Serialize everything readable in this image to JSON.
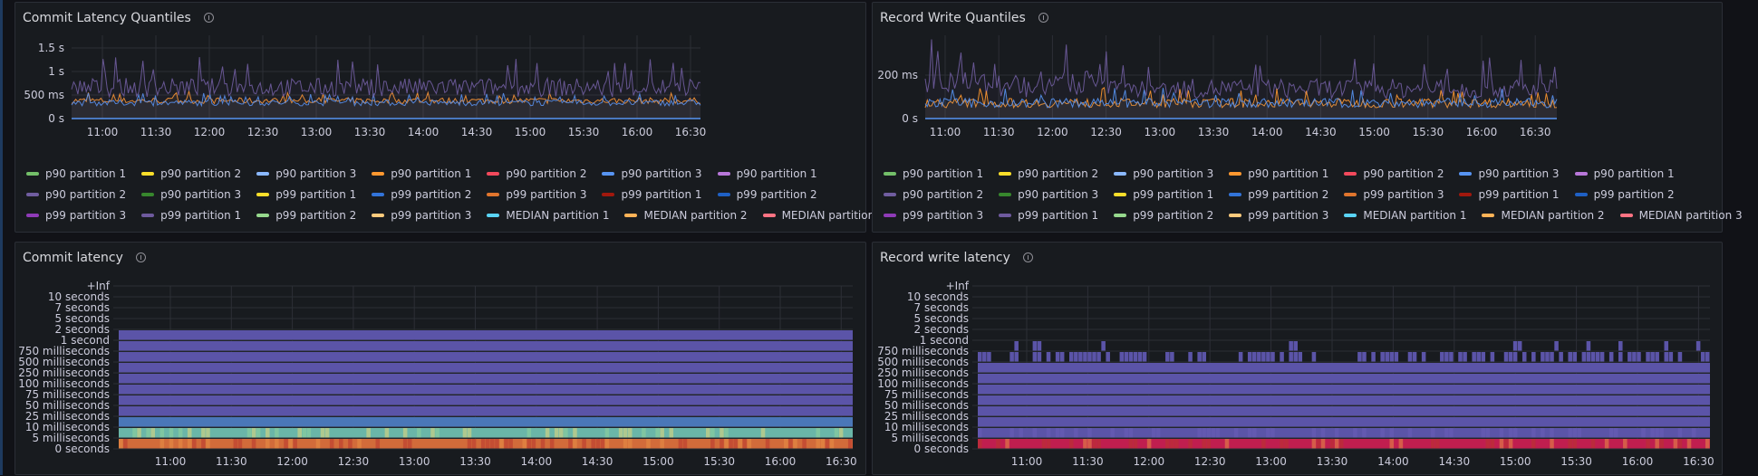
{
  "panels": {
    "commit_quantiles": {
      "title": "Commit Latency Quantiles"
    },
    "record_quantiles": {
      "title": "Record Write Quantiles"
    },
    "commit_latency": {
      "title": "Commit latency"
    },
    "record_latency": {
      "title": "Record write latency"
    }
  },
  "legend_entries": [
    {
      "label": "p90 partition 1",
      "color": "#73bf69"
    },
    {
      "label": "p90 partition 2",
      "color": "#fade2a"
    },
    {
      "label": "p90 partition 3",
      "color": "#8ab8ff"
    },
    {
      "label": "p90 partition 1",
      "color": "#ff9830"
    },
    {
      "label": "p90 partition 2",
      "color": "#f2495c"
    },
    {
      "label": "p90 partition 3",
      "color": "#5794f2"
    },
    {
      "label": "p90 partition 1",
      "color": "#b877d9"
    },
    {
      "label": "p90 partition 2",
      "color": "#705da0"
    },
    {
      "label": "p90 partition 3",
      "color": "#37872d"
    },
    {
      "label": "p99 partition 1",
      "color": "#fade2a"
    },
    {
      "label": "p99 partition 2",
      "color": "#3274d9"
    },
    {
      "label": "p99 partition 3",
      "color": "#e0752d"
    },
    {
      "label": "p99 partition 1",
      "color": "#a1180d"
    },
    {
      "label": "p99 partition 2",
      "color": "#1f60c4"
    },
    {
      "label": "p99 partition 3",
      "color": "#8f3bb8"
    },
    {
      "label": "p99 partition 1",
      "color": "#6e5a9e"
    },
    {
      "label": "p99 partition 2",
      "color": "#96d98d"
    },
    {
      "label": "p99 partition 3",
      "color": "#ffcb7d"
    },
    {
      "label": "MEDIAN partition 1",
      "color": "#5ad4f6"
    },
    {
      "label": "MEDIAN partition 2",
      "color": "#ffb357"
    },
    {
      "label": "MEDIAN partition 3",
      "color": "#ff7383"
    }
  ],
  "time_ticks": [
    "11:00",
    "11:30",
    "12:00",
    "12:30",
    "13:00",
    "13:30",
    "14:00",
    "14:30",
    "15:00",
    "15:30",
    "16:00",
    "16:30"
  ],
  "chart_data": [
    {
      "type": "line",
      "title": "Commit Latency Quantiles",
      "y_ticks": [
        "0 s",
        "500 ms",
        "1 s",
        "1.5 s"
      ],
      "ylim": [
        0,
        1.7
      ],
      "x": [
        "10:45",
        "16:35"
      ],
      "series": [
        {
          "name": "p90 partition 1 (orange)",
          "color": "#ff9830",
          "approx_range": [
            0.25,
            0.65
          ]
        },
        {
          "name": "p90 partition 3 (blue)",
          "color": "#5794f2",
          "approx_range": [
            0.2,
            0.6
          ]
        },
        {
          "name": "p99 partition 1 (purple)",
          "color": "#705da0",
          "approx_range": [
            0.2,
            1.45
          ]
        }
      ]
    },
    {
      "type": "line",
      "title": "Record Write Quantiles",
      "y_ticks": [
        "0 s",
        "200 ms"
      ],
      "ylim": [
        0,
        0.35
      ],
      "x": [
        "10:45",
        "16:35"
      ],
      "series": [
        {
          "name": "p99 partition 1 (purple)",
          "color": "#705da0",
          "approx_range": [
            0.03,
            0.3
          ]
        },
        {
          "name": "p90 partition 1 (orange)",
          "color": "#ff9830",
          "approx_range": [
            0.02,
            0.15
          ]
        },
        {
          "name": "p90 partition 3 (blue)",
          "color": "#5794f2",
          "approx_range": [
            0.02,
            0.15
          ]
        }
      ]
    },
    {
      "type": "heatmap",
      "title": "Commit latency",
      "y_buckets": [
        "0 seconds",
        "5 milliseconds",
        "10 milliseconds",
        "25 milliseconds",
        "50 milliseconds",
        "75 milliseconds",
        "100 milliseconds",
        "250 milliseconds",
        "500 milliseconds",
        "750 milliseconds",
        "1 second",
        "2 seconds",
        "5 seconds",
        "7 seconds",
        "10 seconds",
        "+Inf"
      ],
      "filled_buckets": 11,
      "bucket_colors": [
        "#d26b3a",
        "#6ab6a8",
        "#4a77b8",
        "#5b54a8",
        "#5b54a8",
        "#5b54a8",
        "#5b54a8",
        "#5b54a8",
        "#5b54a8",
        "#5b54a8",
        "#5b54a8"
      ]
    },
    {
      "type": "heatmap",
      "title": "Record write latency",
      "y_buckets": [
        "0 seconds",
        "5 milliseconds",
        "10 milliseconds",
        "25 milliseconds",
        "50 milliseconds",
        "75 milliseconds",
        "100 milliseconds",
        "250 milliseconds",
        "500 milliseconds",
        "750 milliseconds",
        "1 second",
        "2 seconds",
        "5 seconds",
        "7 seconds",
        "10 seconds",
        "+Inf"
      ],
      "filled_buckets": 8,
      "sparse_buckets": 2,
      "bucket_colors": [
        "#c01e4f",
        "#5b54a8",
        "#5b54a8",
        "#5b54a8",
        "#5b54a8",
        "#5b54a8",
        "#5b54a8",
        "#5b54a8"
      ]
    }
  ]
}
